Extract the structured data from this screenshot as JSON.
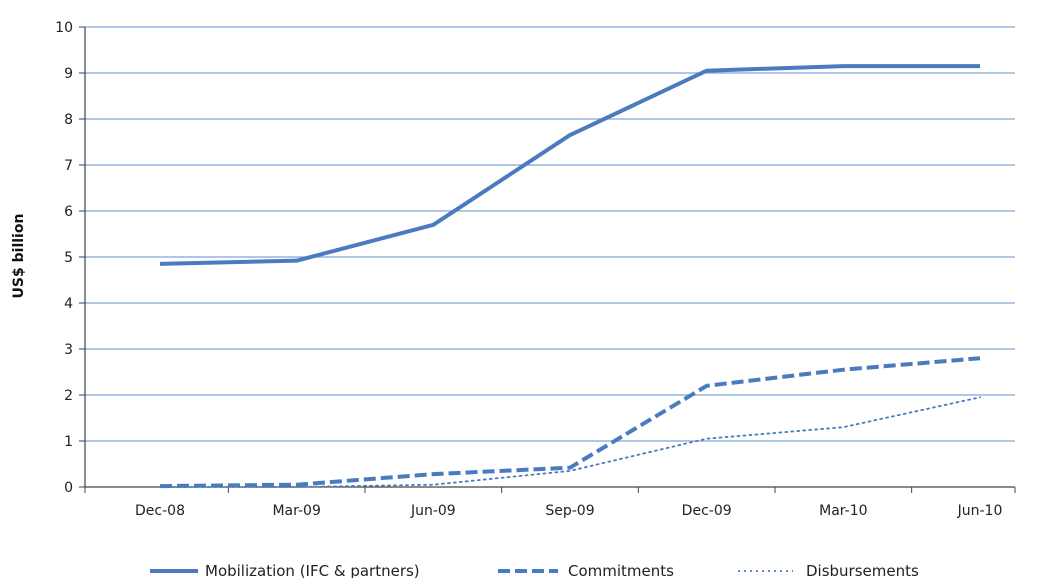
{
  "chart_data": {
    "type": "line",
    "categories": [
      "Dec-08",
      "Mar-09",
      "Jun-09",
      "Sep-09",
      "Dec-09",
      "Mar-10",
      "Jun-10"
    ],
    "ylabel": "US$ billion",
    "ylim": [
      0,
      10
    ],
    "yticks": [
      "0",
      "1",
      "2",
      "3",
      "4",
      "5",
      "6",
      "7",
      "8",
      "9",
      "10"
    ],
    "grid": true,
    "legend_position": "bottom",
    "series": [
      {
        "name": "Mobilization (IFC & partners)",
        "style": "solid",
        "color": "#4a7bbf",
        "values": [
          4.85,
          4.92,
          5.7,
          7.65,
          9.05,
          9.15,
          9.15
        ]
      },
      {
        "name": "Commitments",
        "style": "dashed",
        "color": "#4a7bbf",
        "values": [
          0.02,
          0.05,
          0.28,
          0.42,
          2.2,
          2.55,
          2.8
        ]
      },
      {
        "name": "Disbursements",
        "style": "dotted",
        "color": "#4a7bbf",
        "values": [
          0.0,
          0.0,
          0.05,
          0.35,
          1.05,
          1.3,
          1.95
        ]
      }
    ]
  }
}
